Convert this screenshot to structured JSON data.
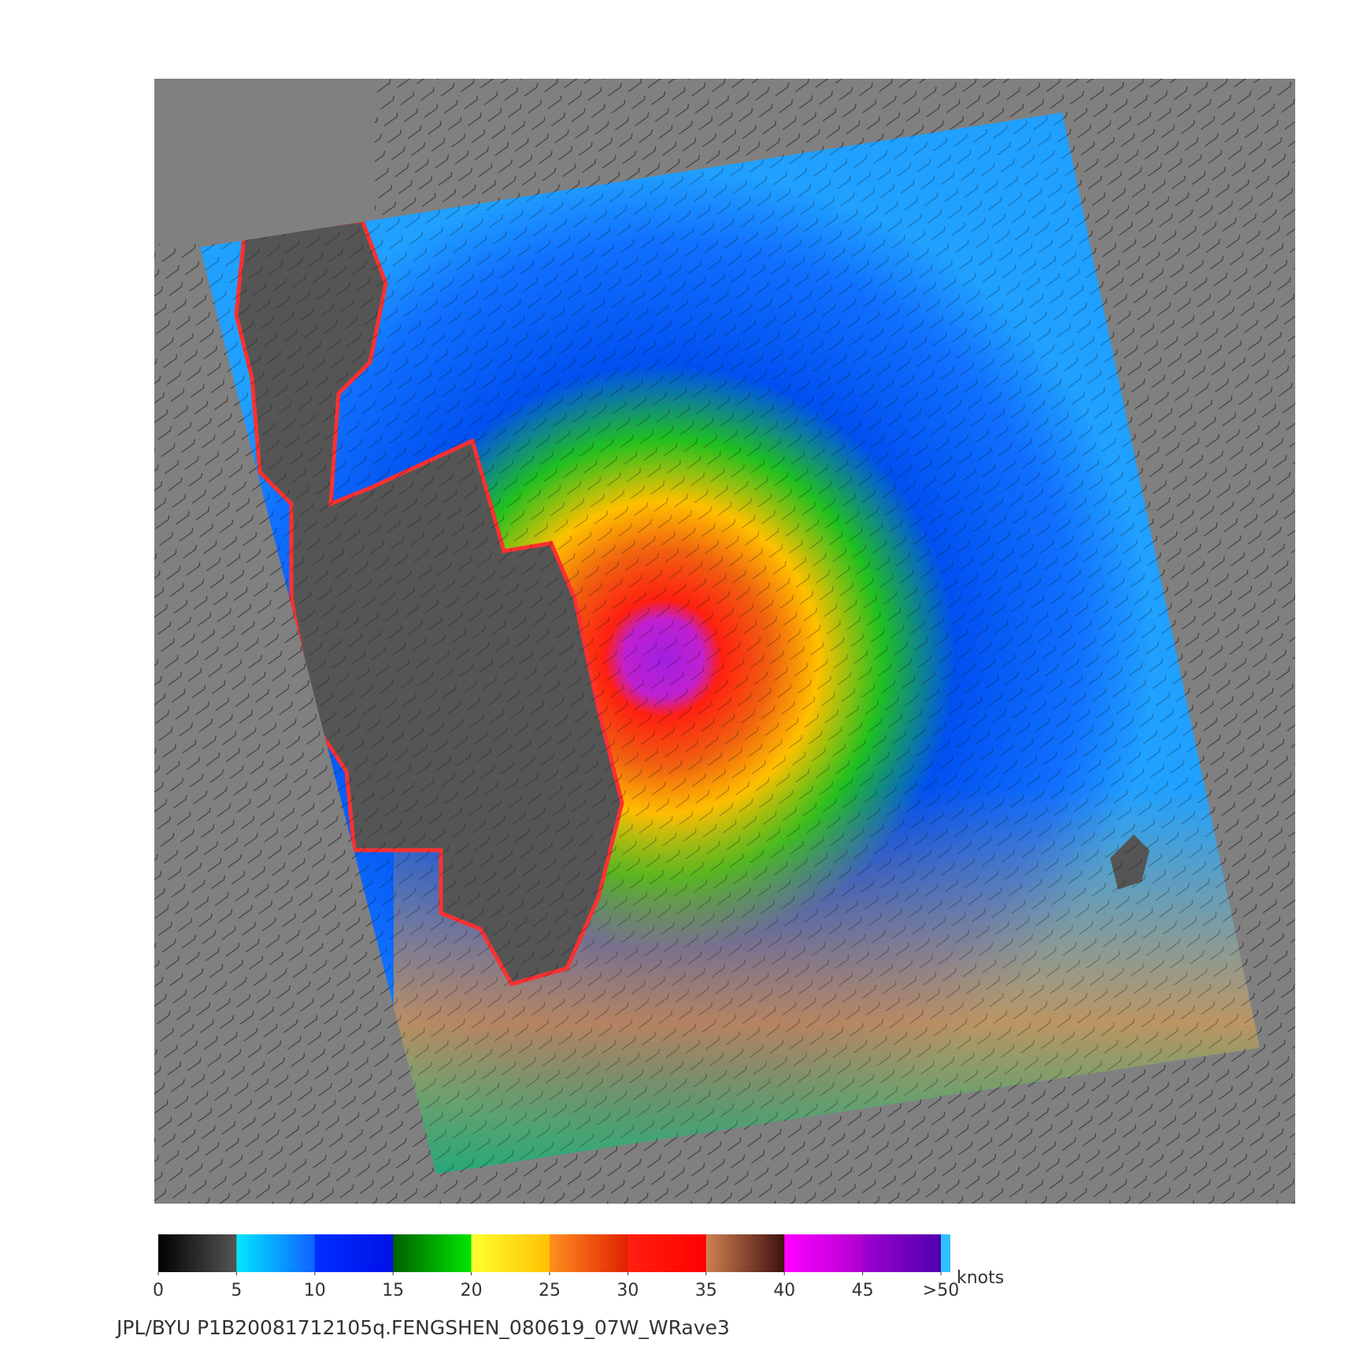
{
  "colorbar": {
    "ticks": [
      0,
      5,
      10,
      15,
      20,
      25,
      30,
      35,
      40,
      45,
      {
        "value": 50,
        "label": ">50"
      }
    ],
    "range": [
      0,
      50
    ],
    "unit": "knots",
    "bands": [
      [
        "#000000",
        "#555555"
      ],
      [
        "#00e8ff",
        "#1060ff"
      ],
      [
        "#0030ff",
        "#0010e8"
      ],
      [
        "#006000",
        "#00e800"
      ],
      [
        "#ffff30",
        "#ffc000"
      ],
      [
        "#ff9020",
        "#e02000"
      ],
      [
        "#ff2010",
        "#ff0000"
      ],
      [
        "#d08050",
        "#401010"
      ],
      [
        "#ff00ff",
        "#b000d0"
      ],
      [
        "#a000d0",
        "#5000b0"
      ]
    ]
  },
  "footer": "JPL/BYU  P1B20081712105q.FENGSHEN_080619_07W_WRave3"
}
